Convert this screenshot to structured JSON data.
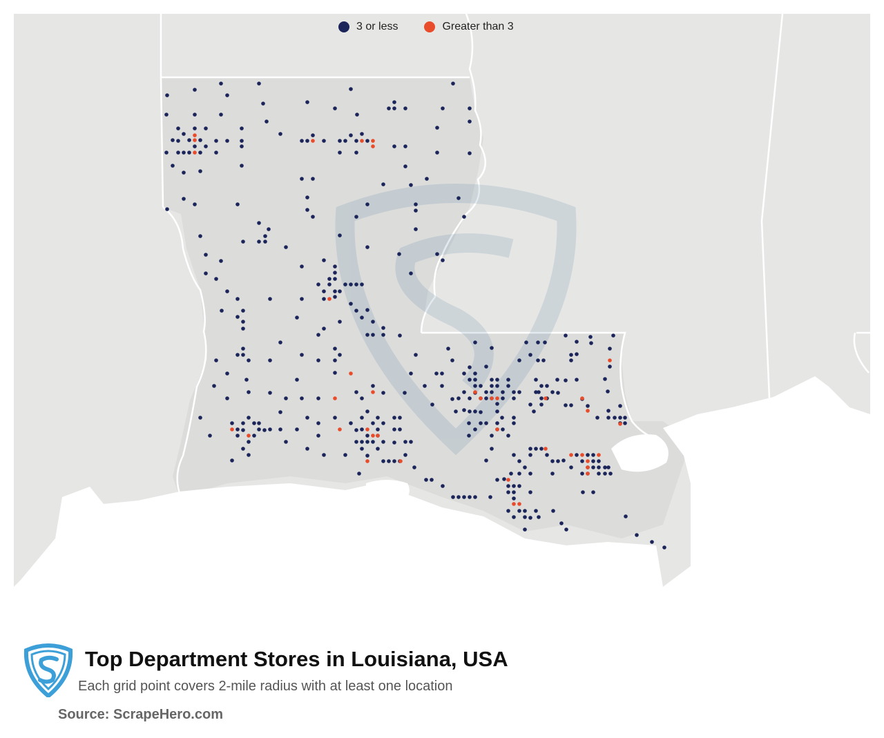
{
  "legend": {
    "items": [
      {
        "label": "3 or less",
        "color": "#1b2559"
      },
      {
        "label": "Greater than 3",
        "color": "#e84c2a"
      }
    ]
  },
  "footer": {
    "title": "Top Department Stores in Louisiana, USA",
    "subtitle": "Each grid point covers 2-mile radius with at least one location",
    "source": "Source: ScrapeHero.com"
  },
  "colors": {
    "land_outer": "#e6e6e5",
    "land_state": "#dcdcdb",
    "water": "#ffffff",
    "border": "#ffffff",
    "low": "#1b2559",
    "high": "#e84c2a",
    "logo_blue": "#3c9fd8"
  }
}
